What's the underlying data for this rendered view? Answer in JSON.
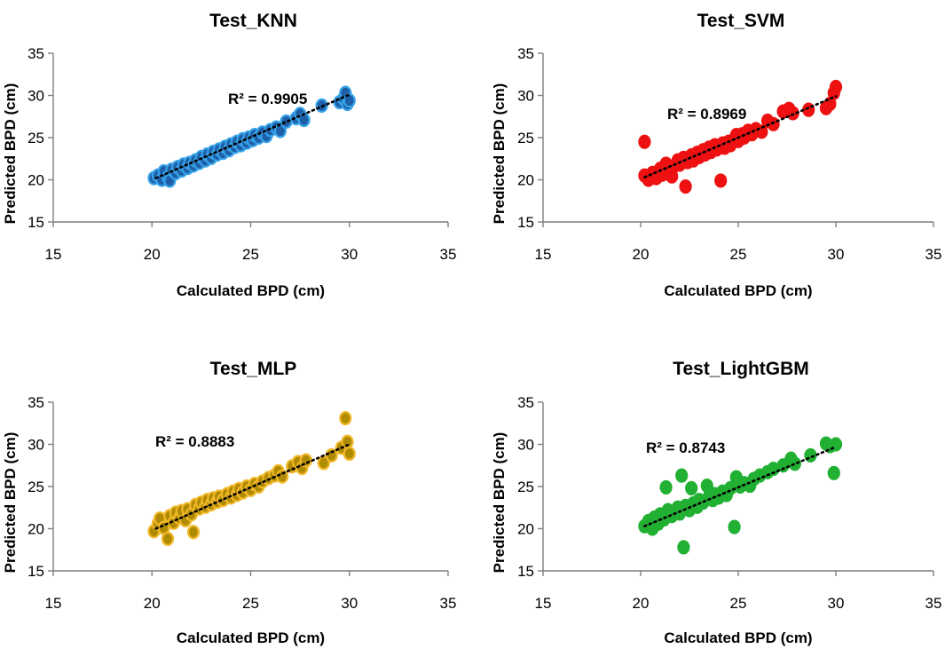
{
  "chart_data": [
    {
      "type": "scatter",
      "title": "Test_KNN",
      "xlabel": "Calculated BPD (cm)",
      "ylabel": "Predicted BPD (cm)",
      "xlim": [
        15,
        35
      ],
      "ylim": [
        15,
        35
      ],
      "xticks": [
        15,
        20,
        25,
        30,
        35
      ],
      "yticks": [
        15,
        20,
        25,
        30,
        35
      ],
      "r2_label": "R² = 0.9905",
      "trend": [
        [
          20.2,
          20.2
        ],
        [
          30.0,
          30.1
        ]
      ],
      "marker_color": "#1f5fa8",
      "marker_edge": "#35a2e8",
      "points": [
        [
          20.1,
          20.2
        ],
        [
          20.3,
          20.5
        ],
        [
          20.5,
          20.0
        ],
        [
          20.6,
          21.0
        ],
        [
          20.8,
          20.3
        ],
        [
          20.9,
          19.9
        ],
        [
          21.0,
          21.2
        ],
        [
          21.2,
          20.8
        ],
        [
          21.3,
          21.5
        ],
        [
          21.5,
          21.1
        ],
        [
          21.6,
          21.8
        ],
        [
          21.8,
          21.4
        ],
        [
          21.9,
          22.0
        ],
        [
          22.1,
          21.7
        ],
        [
          22.2,
          22.3
        ],
        [
          22.4,
          22.0
        ],
        [
          22.5,
          22.7
        ],
        [
          22.7,
          22.3
        ],
        [
          22.8,
          23.0
        ],
        [
          23.0,
          22.6
        ],
        [
          23.1,
          23.3
        ],
        [
          23.3,
          23.0
        ],
        [
          23.4,
          23.6
        ],
        [
          23.6,
          23.2
        ],
        [
          23.7,
          23.9
        ],
        [
          23.9,
          23.5
        ],
        [
          24.0,
          24.2
        ],
        [
          24.2,
          23.9
        ],
        [
          24.3,
          24.5
        ],
        [
          24.5,
          24.1
        ],
        [
          24.6,
          24.8
        ],
        [
          24.8,
          24.4
        ],
        [
          24.9,
          25.0
        ],
        [
          25.1,
          24.7
        ],
        [
          25.2,
          25.3
        ],
        [
          25.4,
          25.0
        ],
        [
          25.6,
          25.6
        ],
        [
          25.8,
          25.2
        ],
        [
          26.0,
          25.9
        ],
        [
          26.3,
          26.2
        ],
        [
          26.5,
          25.8
        ],
        [
          26.8,
          26.9
        ],
        [
          27.3,
          27.3
        ],
        [
          27.5,
          27.8
        ],
        [
          27.7,
          27.1
        ],
        [
          28.6,
          28.8
        ],
        [
          29.5,
          29.2
        ],
        [
          29.7,
          29.6
        ],
        [
          29.8,
          30.3
        ],
        [
          29.9,
          29.0
        ],
        [
          30.0,
          29.4
        ]
      ]
    },
    {
      "type": "scatter",
      "title": "Test_SVM",
      "xlabel": "Calculated BPD (cm)",
      "ylabel": "Predicted BPD (cm)",
      "xlim": [
        15,
        35
      ],
      "ylim": [
        15,
        35
      ],
      "xticks": [
        15,
        20,
        25,
        30,
        35
      ],
      "yticks": [
        15,
        20,
        25,
        30,
        35
      ],
      "r2_label": "R² = 0.8969",
      "trend": [
        [
          20.2,
          20.3
        ],
        [
          30.0,
          29.9
        ]
      ],
      "marker_color": "#ee1111",
      "marker_edge": "#ee1111",
      "points": [
        [
          20.2,
          24.5
        ],
        [
          20.2,
          20.5
        ],
        [
          20.4,
          20.0
        ],
        [
          20.6,
          20.8
        ],
        [
          20.8,
          20.2
        ],
        [
          21.0,
          21.3
        ],
        [
          21.1,
          20.6
        ],
        [
          21.3,
          21.9
        ],
        [
          21.4,
          21.1
        ],
        [
          21.6,
          20.4
        ],
        [
          21.7,
          21.6
        ],
        [
          21.9,
          22.3
        ],
        [
          22.0,
          21.8
        ],
        [
          22.2,
          22.6
        ],
        [
          22.3,
          19.2
        ],
        [
          22.4,
          22.1
        ],
        [
          22.6,
          22.9
        ],
        [
          22.7,
          22.3
        ],
        [
          22.9,
          23.2
        ],
        [
          23.0,
          22.7
        ],
        [
          23.2,
          23.5
        ],
        [
          23.3,
          23.0
        ],
        [
          23.5,
          23.8
        ],
        [
          23.6,
          23.3
        ],
        [
          23.8,
          24.1
        ],
        [
          23.9,
          23.6
        ],
        [
          24.1,
          19.9
        ],
        [
          24.2,
          24.3
        ],
        [
          24.3,
          23.8
        ],
        [
          24.5,
          24.5
        ],
        [
          24.6,
          24.1
        ],
        [
          24.8,
          24.8
        ],
        [
          24.9,
          25.3
        ],
        [
          25.0,
          24.6
        ],
        [
          25.2,
          25.4
        ],
        [
          25.3,
          25.0
        ],
        [
          25.5,
          25.8
        ],
        [
          25.7,
          25.4
        ],
        [
          25.9,
          26.0
        ],
        [
          26.2,
          25.7
        ],
        [
          26.5,
          27.0
        ],
        [
          26.8,
          26.6
        ],
        [
          27.3,
          28.1
        ],
        [
          27.6,
          28.4
        ],
        [
          27.8,
          27.9
        ],
        [
          28.6,
          28.3
        ],
        [
          29.5,
          28.5
        ],
        [
          29.7,
          29.0
        ],
        [
          29.9,
          30.3
        ],
        [
          30.0,
          31.0
        ]
      ]
    },
    {
      "type": "scatter",
      "title": "Test_MLP",
      "xlabel": "Calculated BPD (cm)",
      "ylabel": "Predicted BPD (cm)",
      "xlim": [
        15,
        35
      ],
      "ylim": [
        15,
        35
      ],
      "xticks": [
        15,
        20,
        25,
        30,
        35
      ],
      "yticks": [
        15,
        20,
        25,
        30,
        35
      ],
      "r2_label": "R² = 0.8883",
      "trend": [
        [
          20.2,
          20.0
        ],
        [
          30.0,
          30.0
        ]
      ],
      "marker_color": "#b08a00",
      "marker_edge": "#f0b82a",
      "points": [
        [
          20.1,
          19.7
        ],
        [
          20.3,
          20.6
        ],
        [
          20.4,
          21.2
        ],
        [
          20.6,
          20.1
        ],
        [
          20.8,
          18.8
        ],
        [
          20.9,
          21.5
        ],
        [
          21.1,
          20.7
        ],
        [
          21.2,
          21.9
        ],
        [
          21.4,
          21.3
        ],
        [
          21.5,
          22.1
        ],
        [
          21.7,
          21.0
        ],
        [
          21.8,
          22.3
        ],
        [
          22.0,
          21.7
        ],
        [
          22.1,
          19.6
        ],
        [
          22.2,
          22.8
        ],
        [
          22.4,
          22.4
        ],
        [
          22.5,
          23.1
        ],
        [
          22.7,
          22.6
        ],
        [
          22.8,
          23.4
        ],
        [
          23.0,
          22.9
        ],
        [
          23.1,
          23.6
        ],
        [
          23.3,
          23.2
        ],
        [
          23.4,
          23.8
        ],
        [
          23.6,
          23.4
        ],
        [
          23.8,
          24.1
        ],
        [
          24.0,
          23.7
        ],
        [
          24.1,
          24.4
        ],
        [
          24.3,
          24.0
        ],
        [
          24.4,
          24.7
        ],
        [
          24.6,
          24.3
        ],
        [
          24.8,
          25.0
        ],
        [
          25.0,
          24.6
        ],
        [
          25.2,
          25.3
        ],
        [
          25.4,
          25.0
        ],
        [
          25.6,
          25.6
        ],
        [
          25.9,
          26.0
        ],
        [
          26.2,
          26.3
        ],
        [
          26.4,
          26.8
        ],
        [
          26.6,
          26.2
        ],
        [
          27.1,
          27.4
        ],
        [
          27.4,
          27.9
        ],
        [
          27.6,
          27.2
        ],
        [
          27.8,
          28.1
        ],
        [
          28.7,
          27.8
        ],
        [
          29.1,
          28.7
        ],
        [
          29.6,
          29.6
        ],
        [
          29.8,
          33.1
        ],
        [
          29.9,
          30.3
        ],
        [
          30.0,
          28.9
        ]
      ]
    },
    {
      "type": "scatter",
      "title": "Test_LightGBM",
      "xlabel": "Calculated BPD (cm)",
      "ylabel": "Predicted BPD (cm)",
      "xlim": [
        15,
        35
      ],
      "ylim": [
        15,
        35
      ],
      "xticks": [
        15,
        20,
        25,
        30,
        35
      ],
      "yticks": [
        15,
        20,
        25,
        30,
        35
      ],
      "r2_label": "R² = 0.8743",
      "trend": [
        [
          20.2,
          20.3
        ],
        [
          30.0,
          29.7
        ]
      ],
      "marker_color": "#22b033",
      "marker_edge": "#22b033",
      "points": [
        [
          20.2,
          20.3
        ],
        [
          20.4,
          20.9
        ],
        [
          20.6,
          20.0
        ],
        [
          20.7,
          21.3
        ],
        [
          20.9,
          20.6
        ],
        [
          21.0,
          21.7
        ],
        [
          21.2,
          21.1
        ],
        [
          21.3,
          24.9
        ],
        [
          21.4,
          22.2
        ],
        [
          21.6,
          21.5
        ],
        [
          21.7,
          22.0
        ],
        [
          21.9,
          22.5
        ],
        [
          22.0,
          21.8
        ],
        [
          22.1,
          26.3
        ],
        [
          22.2,
          17.8
        ],
        [
          22.3,
          22.7
        ],
        [
          22.5,
          22.2
        ],
        [
          22.6,
          24.8
        ],
        [
          22.7,
          23.0
        ],
        [
          22.9,
          22.6
        ],
        [
          23.0,
          23.4
        ],
        [
          23.2,
          23.1
        ],
        [
          23.4,
          25.1
        ],
        [
          23.5,
          23.8
        ],
        [
          23.7,
          23.4
        ],
        [
          23.8,
          24.1
        ],
        [
          24.0,
          23.7
        ],
        [
          24.2,
          24.4
        ],
        [
          24.4,
          24.0
        ],
        [
          24.6,
          24.8
        ],
        [
          24.8,
          20.2
        ],
        [
          24.9,
          26.1
        ],
        [
          25.1,
          25.0
        ],
        [
          25.3,
          25.4
        ],
        [
          25.6,
          25.1
        ],
        [
          25.8,
          25.9
        ],
        [
          26.1,
          26.3
        ],
        [
          26.5,
          26.7
        ],
        [
          26.8,
          27.1
        ],
        [
          27.3,
          27.5
        ],
        [
          27.7,
          28.3
        ],
        [
          27.9,
          27.7
        ],
        [
          28.7,
          28.7
        ],
        [
          29.5,
          30.1
        ],
        [
          29.7,
          29.8
        ],
        [
          29.9,
          26.6
        ],
        [
          30.0,
          30.0
        ]
      ]
    }
  ]
}
